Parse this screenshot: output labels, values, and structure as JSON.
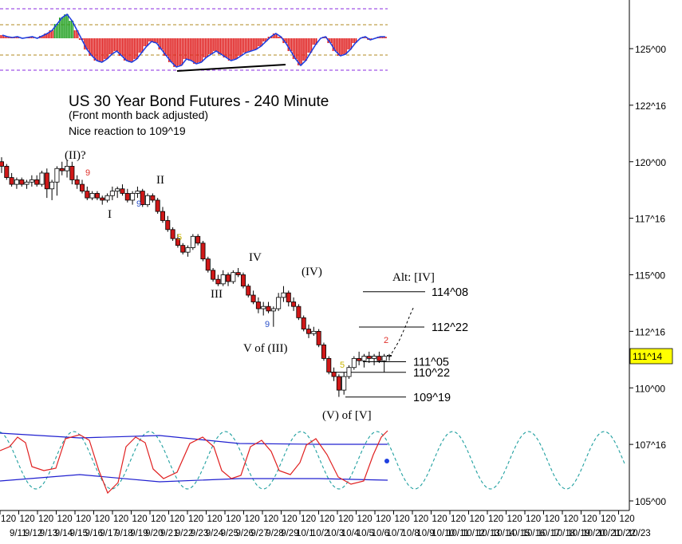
{
  "chart_data": {
    "type": "candlestick",
    "title": "US 30 Year Bond Futures - 240 Minute",
    "subtitle_lines": [
      "(Front month back adjusted)",
      "Nice reaction to 109^19"
    ],
    "y_axis": {
      "ticks": [
        "125^00",
        "122^16",
        "120^00",
        "117^16",
        "115^00",
        "112^16",
        "110^00",
        "107^16",
        "105^00"
      ],
      "tick_values": [
        125.0,
        122.5,
        120.0,
        117.5,
        115.0,
        112.5,
        110.0,
        107.5,
        105.0
      ],
      "current_price_label": "111^14",
      "current_price_value": 111.4375,
      "current_price_color": "#ffff00"
    },
    "x_axis": {
      "repeat_label": "120",
      "date_labels": [
        "9/11",
        "9/12",
        "9/13",
        "9/14",
        "9/15",
        "9/16",
        "9/17",
        "9/18",
        "9/19",
        "9/20",
        "9/21",
        "9/22",
        "9/23",
        "9/24",
        "9/25",
        "9/26",
        "9/27",
        "9/28",
        "9/29",
        "10/1",
        "10/2",
        "10/3",
        "10/4",
        "10/5",
        "10/6",
        "10/7",
        "10/8",
        "10/9",
        "10/10",
        "10/11",
        "10/12",
        "10/13",
        "10/14",
        "10/15",
        "10/16",
        "10/17",
        "10/18",
        "10/19",
        "10/20",
        "10/21",
        "10/22",
        "10/23"
      ]
    },
    "candles_ohlc": [
      [
        120.0,
        120.2,
        119.5,
        119.8
      ],
      [
        119.8,
        119.9,
        119.2,
        119.3
      ],
      [
        119.3,
        119.5,
        118.9,
        119.0
      ],
      [
        119.0,
        119.3,
        118.8,
        119.2
      ],
      [
        119.2,
        119.3,
        118.9,
        119.0
      ],
      [
        119.0,
        119.2,
        118.8,
        119.1
      ],
      [
        119.1,
        119.4,
        118.9,
        119.2
      ],
      [
        119.2,
        119.4,
        118.9,
        119.0
      ],
      [
        119.0,
        119.6,
        118.9,
        119.5
      ],
      [
        119.5,
        119.7,
        118.4,
        118.8
      ],
      [
        118.8,
        119.2,
        118.3,
        119.1
      ],
      [
        119.1,
        119.8,
        118.5,
        119.7
      ],
      [
        119.7,
        120.0,
        119.4,
        119.6
      ],
      [
        119.6,
        120.1,
        119.3,
        119.8
      ],
      [
        119.8,
        120.0,
        119.0,
        119.2
      ],
      [
        119.2,
        119.4,
        118.8,
        119.0
      ],
      [
        119.0,
        119.2,
        118.6,
        118.7
      ],
      [
        118.7,
        118.9,
        118.3,
        118.4
      ],
      [
        118.4,
        118.7,
        118.3,
        118.6
      ],
      [
        118.6,
        118.7,
        118.3,
        118.4
      ],
      [
        118.4,
        118.5,
        118.1,
        118.3
      ],
      [
        118.3,
        118.6,
        118.2,
        118.5
      ],
      [
        118.5,
        118.9,
        118.3,
        118.7
      ],
      [
        118.7,
        118.9,
        118.4,
        118.8
      ],
      [
        118.8,
        119.0,
        118.5,
        118.6
      ],
      [
        118.6,
        118.8,
        118.2,
        118.3
      ],
      [
        118.3,
        118.7,
        118.1,
        118.6
      ],
      [
        118.6,
        118.9,
        118.4,
        118.7
      ],
      [
        118.7,
        118.8,
        118.0,
        118.1
      ],
      [
        118.1,
        118.6,
        118.0,
        118.5
      ],
      [
        118.5,
        118.6,
        118.2,
        118.3
      ],
      [
        118.3,
        118.4,
        117.7,
        117.8
      ],
      [
        117.8,
        118.0,
        117.3,
        117.4
      ],
      [
        117.4,
        117.6,
        116.9,
        117.0
      ],
      [
        117.0,
        117.1,
        116.5,
        116.6
      ],
      [
        116.6,
        116.8,
        116.2,
        116.3
      ],
      [
        116.3,
        116.4,
        115.9,
        116.0
      ],
      [
        116.0,
        116.3,
        115.8,
        116.2
      ],
      [
        116.2,
        116.8,
        116.1,
        116.7
      ],
      [
        116.7,
        116.8,
        116.3,
        116.4
      ],
      [
        116.4,
        116.5,
        115.6,
        115.7
      ],
      [
        115.7,
        115.8,
        115.1,
        115.2
      ],
      [
        115.2,
        115.3,
        114.7,
        114.8
      ],
      [
        114.8,
        115.0,
        114.5,
        114.6
      ],
      [
        114.6,
        115.2,
        114.5,
        115.0
      ],
      [
        115.0,
        115.1,
        114.5,
        114.7
      ],
      [
        114.7,
        115.2,
        114.6,
        115.1
      ],
      [
        115.1,
        115.3,
        114.9,
        115.0
      ],
      [
        115.0,
        115.1,
        114.4,
        114.5
      ],
      [
        114.5,
        114.6,
        114.0,
        114.1
      ],
      [
        114.1,
        114.3,
        113.7,
        113.8
      ],
      [
        113.8,
        114.0,
        113.3,
        113.5
      ],
      [
        113.5,
        113.8,
        113.2,
        113.6
      ],
      [
        113.6,
        113.8,
        113.3,
        113.4
      ],
      [
        113.4,
        113.6,
        112.7,
        113.5
      ],
      [
        113.5,
        114.2,
        113.4,
        114.0
      ],
      [
        114.0,
        114.5,
        113.8,
        114.2
      ],
      [
        114.2,
        114.3,
        113.6,
        113.8
      ],
      [
        113.8,
        114.0,
        113.4,
        113.6
      ],
      [
        113.6,
        113.7,
        113.0,
        113.1
      ],
      [
        113.1,
        113.2,
        112.5,
        112.6
      ],
      [
        112.6,
        112.8,
        112.2,
        112.4
      ],
      [
        112.4,
        112.7,
        112.3,
        112.5
      ],
      [
        112.5,
        112.6,
        111.8,
        111.9
      ],
      [
        111.9,
        112.0,
        111.2,
        111.3
      ],
      [
        111.3,
        111.4,
        110.6,
        110.7
      ],
      [
        110.7,
        110.9,
        110.3,
        110.5
      ],
      [
        110.5,
        110.6,
        109.6,
        109.9
      ],
      [
        109.9,
        110.7,
        109.7,
        110.5
      ],
      [
        110.5,
        111.0,
        110.4,
        110.9
      ],
      [
        110.9,
        111.4,
        110.8,
        111.3
      ],
      [
        111.3,
        111.6,
        111.0,
        111.2
      ],
      [
        111.2,
        111.5,
        110.9,
        111.4
      ],
      [
        111.4,
        111.6,
        111.1,
        111.3
      ],
      [
        111.3,
        111.5,
        111.0,
        111.4
      ],
      [
        111.4,
        111.6,
        111.1,
        111.2
      ],
      [
        111.2,
        111.5,
        110.7,
        111.4
      ],
      [
        111.4,
        111.5,
        111.2,
        111.44
      ]
    ],
    "horizontal_levels": [
      {
        "label": "114^08",
        "value": 114.25
      },
      {
        "label": "112^22",
        "value": 112.6875
      },
      {
        "label": "111^05",
        "value": 111.15625
      },
      {
        "label": "110^22",
        "value": 110.6875
      },
      {
        "label": "109^19",
        "value": 109.59375
      }
    ],
    "wave_labels": [
      "(II)?",
      "I",
      "II",
      "III",
      "IV",
      "V of (III)",
      "(IV)",
      "(V) of [V]",
      "Alt: [IV]"
    ],
    "td_counts": [
      {
        "text": "9",
        "color": "#e0302a"
      },
      {
        "text": "9",
        "color": "#2a50c8"
      },
      {
        "text": "5",
        "color": "#c8b400"
      },
      {
        "text": "9",
        "color": "#2a50c8"
      },
      {
        "text": "5",
        "color": "#c8b400"
      },
      {
        "text": "2",
        "color": "#e0302a"
      }
    ],
    "upper_oscillator": {
      "type": "histogram",
      "values": [
        0.7,
        0.6,
        0.55,
        0.6,
        0.5,
        0.55,
        0.6,
        0.5,
        0.65,
        0.8,
        1.0,
        1.4,
        1.8,
        2.0,
        1.6,
        1.0,
        0.4,
        -0.2,
        -0.6,
        -0.9,
        -1.0,
        -0.8,
        -0.5,
        -0.3,
        -0.6,
        -0.9,
        -1.0,
        -0.8,
        -0.4,
        0.0,
        0.3,
        0.2,
        -0.2,
        -0.6,
        -1.0,
        -1.3,
        -1.2,
        -0.8,
        -0.9,
        -1.1,
        -1.0,
        -0.7,
        -0.5,
        -0.3,
        -0.5,
        -0.7,
        -0.9,
        -0.8,
        -0.6,
        -0.4,
        -0.3,
        -0.2,
        0.0,
        0.3,
        0.6,
        0.8,
        0.6,
        0.2,
        -0.3,
        -0.8,
        -1.2,
        -0.9,
        -0.4,
        0.1,
        0.5,
        0.6,
        0.2,
        -0.3,
        -0.6,
        -0.5,
        -0.2,
        0.2,
        0.5,
        0.6,
        0.4,
        0.5,
        0.6,
        0.6
      ],
      "bar_colors": [
        "#e02020",
        "#20a020"
      ],
      "line_color": "#2040e0"
    },
    "lower_oscillator": {
      "red_line_color": "#e02020",
      "blue_band_color": "#2020d0",
      "cycle_color": "#20a0a0"
    },
    "grid": false
  }
}
